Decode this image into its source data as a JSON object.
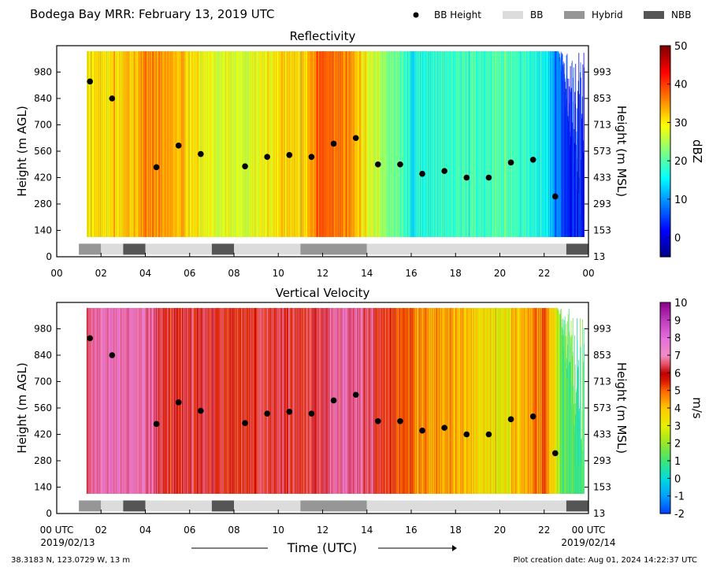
{
  "figure": {
    "title": "Bodega Bay MRR:  February 13, 2019 UTC",
    "xlabel": "Time (UTC)",
    "date_start": "2019/02/13",
    "date_end": "2019/02/14",
    "location": "38.3183 N, 123.0729 W, 13 m",
    "creation": "Plot creation date: Aug 01, 2024 14:22:37 UTC",
    "legend": [
      {
        "key": "height",
        "label": "BB Height",
        "color": "#000000"
      },
      {
        "key": "bb",
        "label": "BB",
        "color": "#dcdcdc"
      },
      {
        "key": "hybrid",
        "label": "Hybrid",
        "color": "#969696"
      },
      {
        "key": "nbb",
        "label": "NBB",
        "color": "#555555"
      }
    ]
  },
  "chart_data": [
    {
      "type": "heatmap",
      "title": "Reflectivity",
      "ylabel": "Height (m AGL)",
      "ylabel_right": "Height (m MSL)",
      "colorbar_label": "dBZ",
      "xlim": [
        0,
        24
      ],
      "ylim": [
        0,
        1120
      ],
      "xticks": [
        "00",
        "02",
        "04",
        "06",
        "08",
        "10",
        "12",
        "14",
        "16",
        "18",
        "20",
        "22",
        "00"
      ],
      "yticks": [
        0,
        140,
        280,
        420,
        560,
        700,
        840,
        980
      ],
      "yticks_right": [
        "13",
        "153",
        "293",
        "433",
        "573",
        "713",
        "853",
        "993"
      ],
      "clim": [
        -5,
        50
      ],
      "cticks": [
        0,
        10,
        20,
        30,
        40,
        50
      ],
      "hourly_values": [
        null,
        28,
        31,
        32,
        35,
        34,
        31,
        29,
        27,
        28,
        31,
        32,
        38,
        37,
        29,
        23,
        17,
        18,
        19,
        19,
        20,
        19,
        16,
        3
      ],
      "data_height_range": [
        105,
        1090
      ],
      "bb_heights": [
        [
          1.5,
          930
        ],
        [
          2.5,
          840
        ],
        [
          4.5,
          475
        ],
        [
          5.5,
          590
        ],
        [
          6.5,
          545
        ],
        [
          8.5,
          480
        ],
        [
          9.5,
          530
        ],
        [
          10.5,
          540
        ],
        [
          11.5,
          530
        ],
        [
          12.5,
          600
        ],
        [
          13.5,
          630
        ],
        [
          14.5,
          490
        ],
        [
          15.5,
          490
        ],
        [
          16.5,
          440
        ],
        [
          17.5,
          455
        ],
        [
          18.5,
          420
        ],
        [
          19.5,
          420
        ],
        [
          20.5,
          500
        ],
        [
          21.5,
          515
        ],
        [
          22.5,
          320
        ]
      ],
      "bb_type_bar": [
        [
          1.0,
          2.0,
          "hybrid"
        ],
        [
          2.0,
          3.0,
          "bb"
        ],
        [
          3.0,
          4.0,
          "nbb"
        ],
        [
          4.0,
          7.0,
          "bb"
        ],
        [
          7.0,
          8.0,
          "nbb"
        ],
        [
          8.0,
          11.0,
          "bb"
        ],
        [
          11.0,
          14.0,
          "hybrid"
        ],
        [
          14.0,
          23.0,
          "bb"
        ],
        [
          23.0,
          24.0,
          "nbb"
        ]
      ]
    },
    {
      "type": "heatmap",
      "title": "Vertical Velocity",
      "ylabel": "Height (m AGL)",
      "ylabel_right": "Height (m MSL)",
      "colorbar_label": "m/s",
      "xlim": [
        0,
        24
      ],
      "ylim": [
        0,
        1120
      ],
      "xticks": [
        "00 UTC",
        "02",
        "04",
        "06",
        "08",
        "10",
        "12",
        "14",
        "16",
        "18",
        "20",
        "22",
        "00 UTC"
      ],
      "yticks": [
        0,
        140,
        280,
        420,
        560,
        700,
        840,
        980
      ],
      "yticks_right": [
        "13",
        "153",
        "293",
        "433",
        "573",
        "713",
        "853",
        "993"
      ],
      "clim": [
        -2,
        10
      ],
      "cticks": [
        -2,
        -1,
        0,
        1,
        2,
        3,
        4,
        5,
        6,
        7,
        8,
        9,
        10
      ],
      "hourly_values": [
        null,
        6.0,
        7.3,
        7.2,
        7.1,
        6.0,
        6.0,
        6.0,
        5.8,
        6.0,
        6.2,
        6.0,
        6.3,
        7.2,
        6.4,
        5.8,
        4.8,
        4.5,
        4.2,
        3.5,
        3.0,
        4.0,
        5.0,
        1.0
      ],
      "data_height_range": [
        105,
        1090
      ],
      "bb_heights": [
        [
          1.5,
          930
        ],
        [
          2.5,
          840
        ],
        [
          4.5,
          475
        ],
        [
          5.5,
          590
        ],
        [
          6.5,
          545
        ],
        [
          8.5,
          480
        ],
        [
          9.5,
          530
        ],
        [
          10.5,
          540
        ],
        [
          11.5,
          530
        ],
        [
          12.5,
          600
        ],
        [
          13.5,
          630
        ],
        [
          14.5,
          490
        ],
        [
          15.5,
          490
        ],
        [
          16.5,
          440
        ],
        [
          17.5,
          455
        ],
        [
          18.5,
          420
        ],
        [
          19.5,
          420
        ],
        [
          20.5,
          500
        ],
        [
          21.5,
          515
        ],
        [
          22.5,
          320
        ]
      ],
      "bb_type_bar": [
        [
          1.0,
          2.0,
          "hybrid"
        ],
        [
          2.0,
          3.0,
          "bb"
        ],
        [
          3.0,
          4.0,
          "nbb"
        ],
        [
          4.0,
          7.0,
          "bb"
        ],
        [
          7.0,
          8.0,
          "nbb"
        ],
        [
          8.0,
          11.0,
          "bb"
        ],
        [
          11.0,
          14.0,
          "hybrid"
        ],
        [
          14.0,
          23.0,
          "bb"
        ],
        [
          23.0,
          24.0,
          "nbb"
        ]
      ]
    }
  ]
}
